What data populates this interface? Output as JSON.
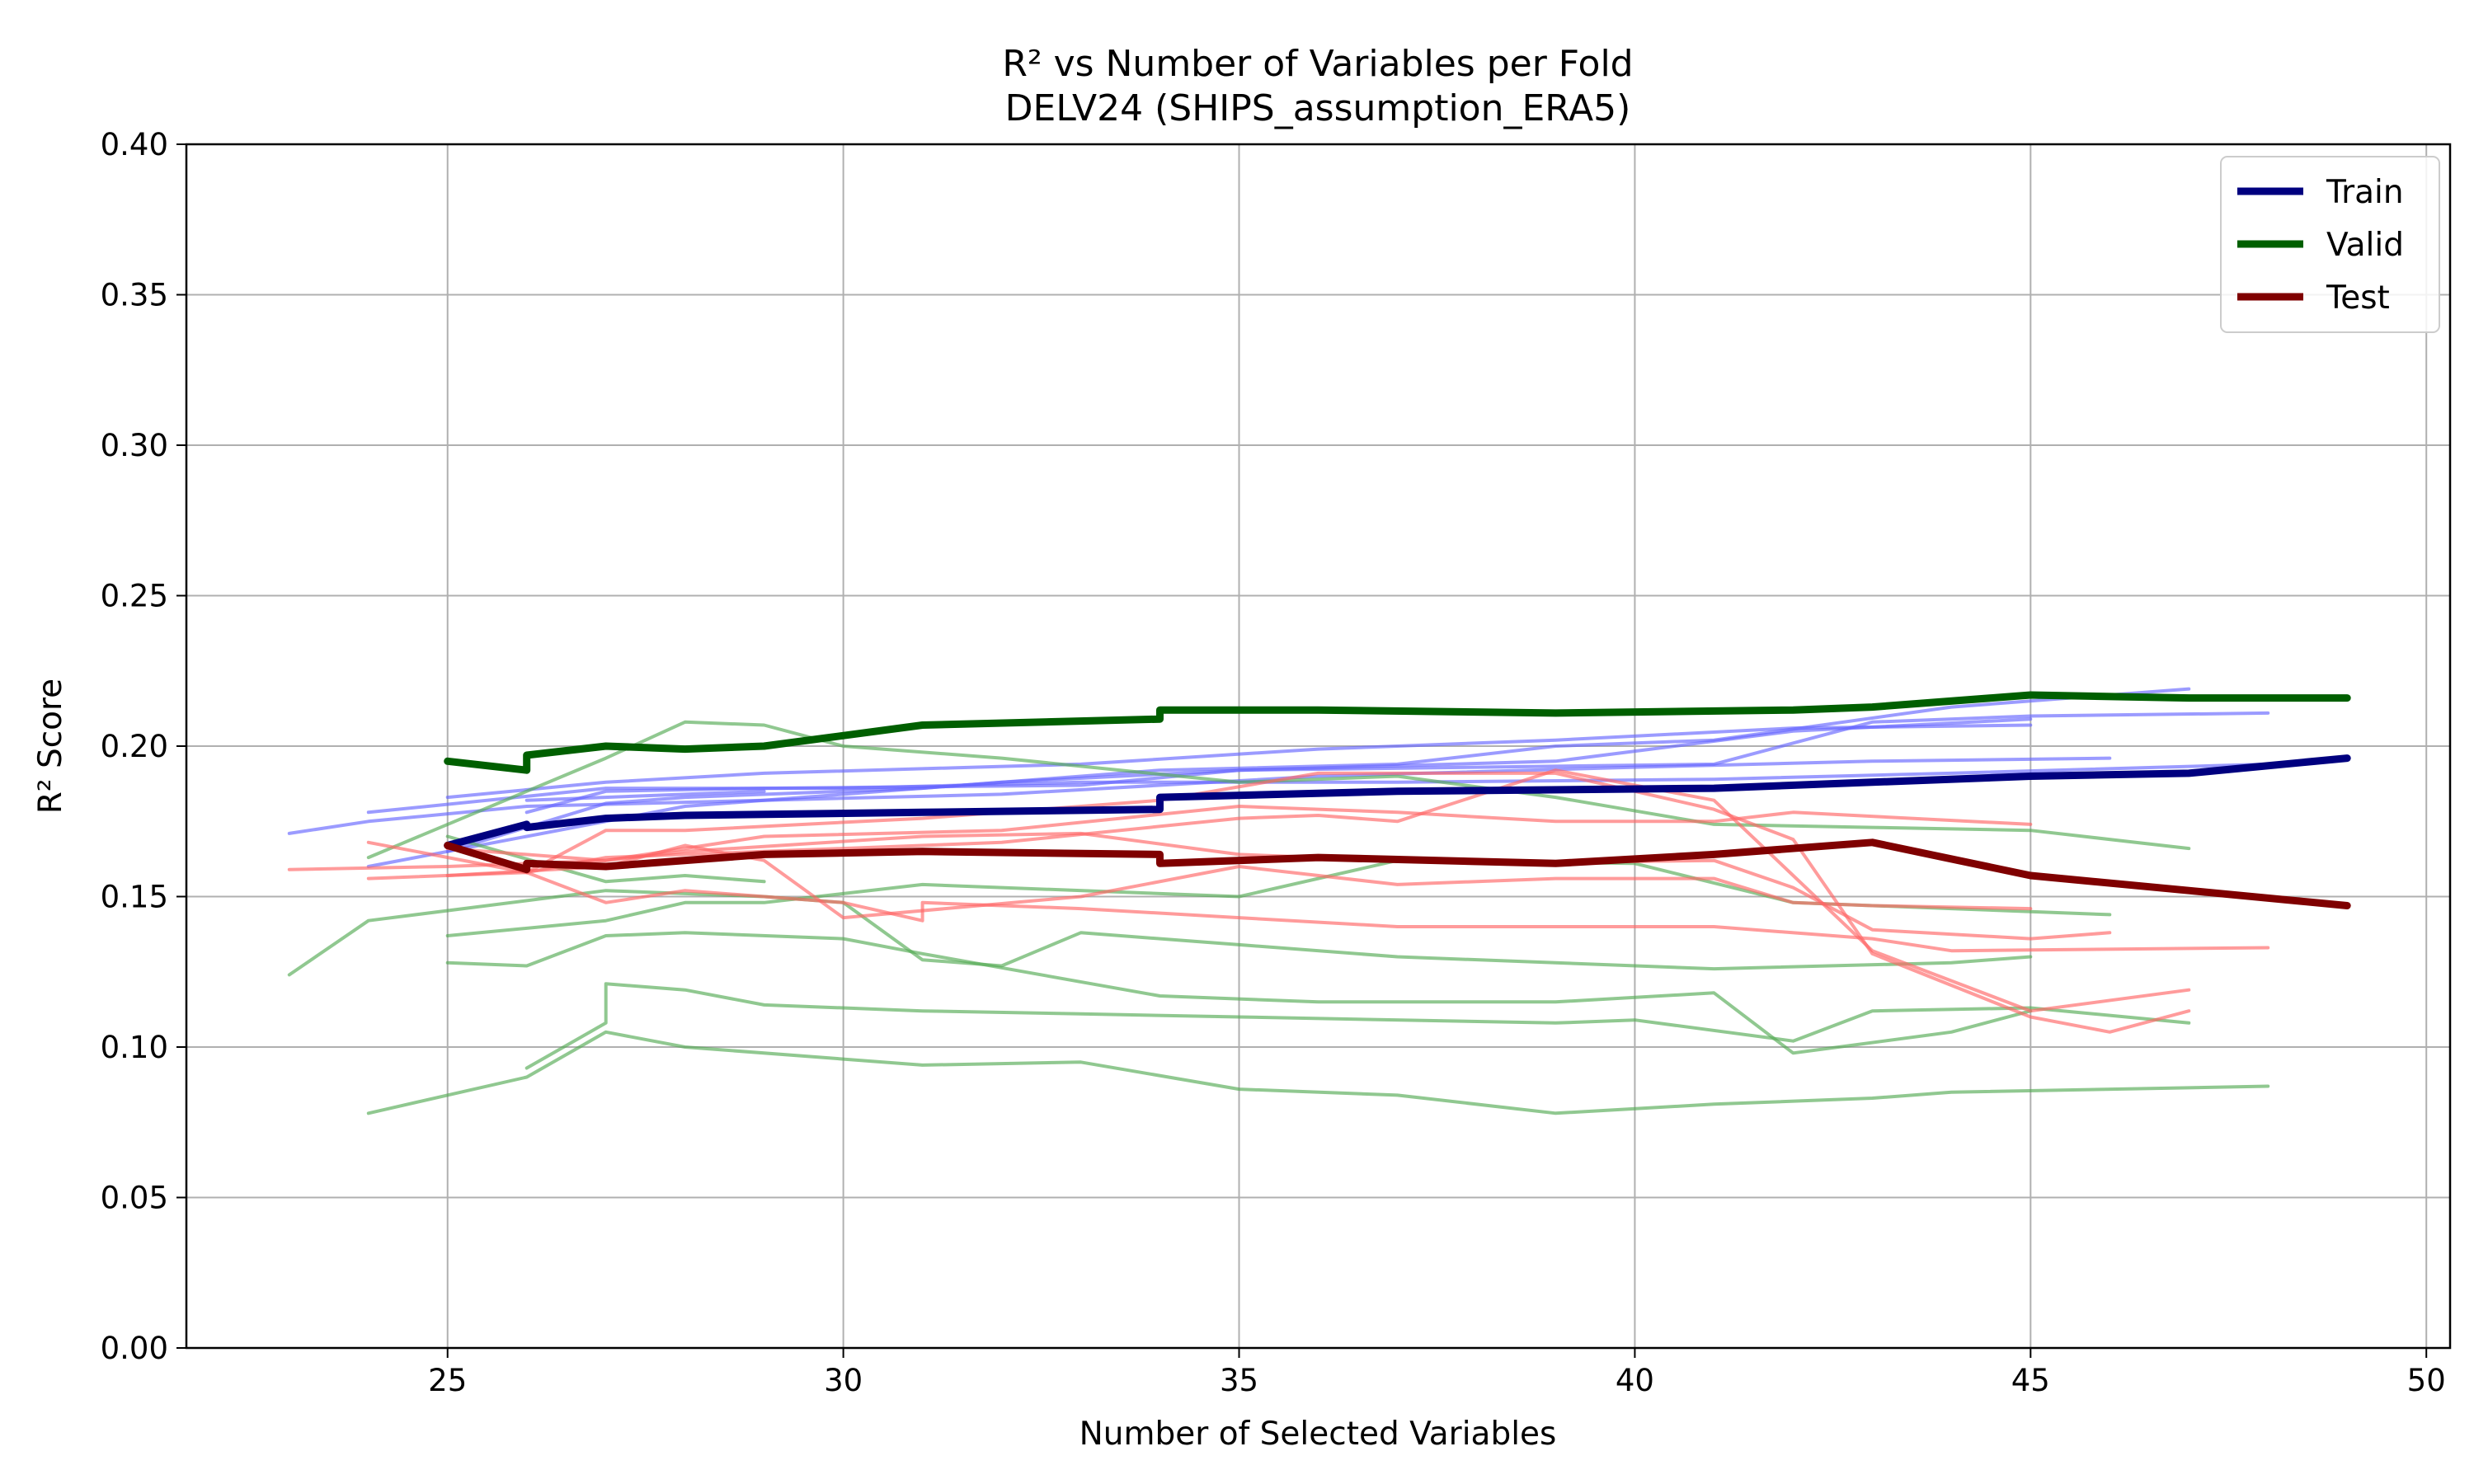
{
  "chart_data": {
    "type": "line",
    "title": "R² vs Number of Variables per Fold",
    "subtitle": "DELV24 (SHIPS_assumption_ERA5)",
    "xlabel": "Number of Selected Variables",
    "ylabel": "R² Score",
    "xlim": [
      21.7,
      50.3
    ],
    "ylim": [
      0.0,
      0.4
    ],
    "xticks": [
      "25",
      "30",
      "35",
      "40",
      "45",
      "50"
    ],
    "yticks": [
      "0.00",
      "0.05",
      "0.10",
      "0.15",
      "0.20",
      "0.25",
      "0.30",
      "0.35",
      "0.40"
    ],
    "grid": true,
    "legend": {
      "position": "top-right",
      "entries": [
        {
          "label": "Train",
          "color": "#00007f"
        },
        {
          "label": "Valid",
          "color": "#005f00"
        },
        {
          "label": "Test",
          "color": "#7f0000"
        }
      ]
    },
    "colors": {
      "train_mean": "#00007f",
      "valid_mean": "#005f00",
      "test_mean": "#7f0000",
      "train_fold": "#6666ff",
      "valid_fold": "#55aa55",
      "test_fold": "#ff6666"
    },
    "mean_series": [
      {
        "name": "Train",
        "color": "#00007f",
        "points": [
          [
            25,
            0.167
          ],
          [
            26,
            0.174
          ],
          [
            26,
            0.173
          ],
          [
            27,
            0.176
          ],
          [
            28,
            0.177
          ],
          [
            31,
            0.178
          ],
          [
            34,
            0.179
          ],
          [
            34,
            0.183
          ],
          [
            37,
            0.185
          ],
          [
            41,
            0.186
          ],
          [
            43,
            0.188
          ],
          [
            45,
            0.19
          ],
          [
            47,
            0.191
          ],
          [
            49,
            0.196
          ]
        ]
      },
      {
        "name": "Valid",
        "color": "#005f00",
        "points": [
          [
            25,
            0.195
          ],
          [
            26,
            0.192
          ],
          [
            26,
            0.197
          ],
          [
            27,
            0.2
          ],
          [
            28,
            0.199
          ],
          [
            29,
            0.2
          ],
          [
            31,
            0.207
          ],
          [
            34,
            0.209
          ],
          [
            34,
            0.212
          ],
          [
            36,
            0.212
          ],
          [
            39,
            0.211
          ],
          [
            42,
            0.212
          ],
          [
            43,
            0.213
          ],
          [
            45,
            0.217
          ],
          [
            47,
            0.216
          ],
          [
            49,
            0.216
          ]
        ]
      },
      {
        "name": "Test",
        "color": "#7f0000",
        "points": [
          [
            25,
            0.167
          ],
          [
            26,
            0.159
          ],
          [
            26,
            0.161
          ],
          [
            27,
            0.16
          ],
          [
            29,
            0.164
          ],
          [
            31,
            0.165
          ],
          [
            34,
            0.164
          ],
          [
            34,
            0.161
          ],
          [
            36,
            0.163
          ],
          [
            39,
            0.161
          ],
          [
            41,
            0.164
          ],
          [
            43,
            0.168
          ],
          [
            45,
            0.157
          ],
          [
            47,
            0.152
          ],
          [
            49,
            0.147
          ]
        ]
      }
    ],
    "fold_series": [
      {
        "group": "train",
        "points": [
          [
            23,
            0.171
          ],
          [
            24,
            0.175
          ],
          [
            26,
            0.18
          ],
          [
            29,
            0.182
          ],
          [
            32,
            0.184
          ],
          [
            36,
            0.19
          ],
          [
            40,
            0.193
          ],
          [
            43,
            0.195
          ],
          [
            46,
            0.196
          ]
        ]
      },
      {
        "group": "train",
        "points": [
          [
            24,
            0.178
          ],
          [
            27,
            0.186
          ],
          [
            30,
            0.186
          ],
          [
            33,
            0.188
          ],
          [
            37,
            0.188
          ],
          [
            41,
            0.189
          ],
          [
            44,
            0.191
          ],
          [
            48,
            0.194
          ]
        ]
      },
      {
        "group": "train",
        "points": [
          [
            24,
            0.16
          ],
          [
            26,
            0.17
          ],
          [
            28,
            0.18
          ],
          [
            30,
            0.184
          ],
          [
            32,
            0.188
          ],
          [
            35,
            0.192
          ],
          [
            39,
            0.195
          ],
          [
            42,
            0.205
          ],
          [
            45,
            0.209
          ]
        ]
      },
      {
        "group": "train",
        "points": [
          [
            25,
            0.183
          ],
          [
            27,
            0.188
          ],
          [
            29,
            0.191
          ],
          [
            33,
            0.194
          ],
          [
            36,
            0.199
          ],
          [
            39,
            0.202
          ],
          [
            42,
            0.206
          ],
          [
            45,
            0.207
          ]
        ]
      },
      {
        "group": "train",
        "points": [
          [
            25,
            0.165
          ],
          [
            27,
            0.181
          ],
          [
            28,
            0.183
          ],
          [
            31,
            0.186
          ],
          [
            34,
            0.192
          ],
          [
            37,
            0.194
          ],
          [
            39,
            0.2
          ],
          [
            41,
            0.202
          ],
          [
            44,
            0.213
          ],
          [
            47,
            0.219
          ]
        ]
      },
      {
        "group": "train",
        "points": [
          [
            26,
            0.178
          ],
          [
            27,
            0.185
          ],
          [
            29,
            0.186
          ],
          [
            33,
            0.187
          ],
          [
            35,
            0.192
          ],
          [
            38,
            0.193
          ],
          [
            41,
            0.194
          ],
          [
            43,
            0.208
          ],
          [
            45,
            0.21
          ],
          [
            48,
            0.211
          ]
        ]
      },
      {
        "group": "train",
        "points": [
          [
            26,
            0.182
          ],
          [
            28,
            0.184
          ],
          [
            29,
            0.185
          ]
        ]
      },
      {
        "group": "valid",
        "points": [
          [
            23,
            0.124
          ],
          [
            24,
            0.142
          ],
          [
            27,
            0.152
          ],
          [
            29,
            0.15
          ],
          [
            30,
            0.148
          ],
          [
            31,
            0.129
          ],
          [
            32,
            0.127
          ],
          [
            33,
            0.138
          ],
          [
            35,
            0.134
          ],
          [
            37,
            0.13
          ],
          [
            41,
            0.126
          ],
          [
            44,
            0.128
          ],
          [
            45,
            0.13
          ]
        ]
      },
      {
        "group": "valid",
        "points": [
          [
            24,
            0.163
          ],
          [
            27,
            0.196
          ],
          [
            28,
            0.208
          ],
          [
            29,
            0.207
          ],
          [
            30,
            0.2
          ],
          [
            32,
            0.196
          ],
          [
            35,
            0.188
          ],
          [
            37,
            0.19
          ],
          [
            39,
            0.183
          ],
          [
            41,
            0.174
          ],
          [
            43,
            0.173
          ],
          [
            45,
            0.172
          ],
          [
            47,
            0.166
          ]
        ]
      },
      {
        "group": "valid",
        "points": [
          [
            24,
            0.078
          ],
          [
            26,
            0.09
          ],
          [
            27,
            0.105
          ],
          [
            28,
            0.1
          ],
          [
            31,
            0.094
          ],
          [
            33,
            0.095
          ],
          [
            35,
            0.086
          ],
          [
            37,
            0.084
          ],
          [
            39,
            0.078
          ],
          [
            41,
            0.081
          ],
          [
            43,
            0.083
          ],
          [
            44,
            0.085
          ],
          [
            48,
            0.087
          ]
        ]
      },
      {
        "group": "valid",
        "points": [
          [
            25,
            0.128
          ],
          [
            26,
            0.127
          ],
          [
            27,
            0.137
          ],
          [
            28,
            0.138
          ],
          [
            30,
            0.136
          ],
          [
            31,
            0.131
          ],
          [
            34,
            0.117
          ],
          [
            36,
            0.115
          ],
          [
            39,
            0.115
          ],
          [
            41,
            0.118
          ],
          [
            42,
            0.098
          ],
          [
            44,
            0.105
          ],
          [
            45,
            0.112
          ]
        ]
      },
      {
        "group": "valid",
        "points": [
          [
            26,
            0.093
          ],
          [
            27,
            0.108
          ],
          [
            27,
            0.121
          ],
          [
            28,
            0.119
          ],
          [
            29,
            0.114
          ],
          [
            31,
            0.112
          ],
          [
            33,
            0.111
          ],
          [
            35,
            0.11
          ],
          [
            39,
            0.108
          ],
          [
            40,
            0.109
          ],
          [
            42,
            0.102
          ],
          [
            43,
            0.112
          ],
          [
            45,
            0.113
          ],
          [
            47,
            0.108
          ]
        ]
      },
      {
        "group": "valid",
        "points": [
          [
            25,
            0.137
          ],
          [
            27,
            0.142
          ],
          [
            28,
            0.148
          ],
          [
            29,
            0.148
          ],
          [
            31,
            0.154
          ],
          [
            35,
            0.15
          ],
          [
            37,
            0.162
          ],
          [
            40,
            0.161
          ],
          [
            42,
            0.148
          ],
          [
            44,
            0.146
          ],
          [
            46,
            0.144
          ]
        ]
      },
      {
        "group": "valid",
        "points": [
          [
            25,
            0.17
          ],
          [
            27,
            0.155
          ],
          [
            28,
            0.157
          ],
          [
            29,
            0.155
          ]
        ]
      },
      {
        "group": "test",
        "points": [
          [
            23,
            0.159
          ],
          [
            25,
            0.16
          ],
          [
            27,
            0.162
          ],
          [
            29,
            0.17
          ],
          [
            32,
            0.172
          ],
          [
            35,
            0.18
          ],
          [
            37,
            0.178
          ],
          [
            39,
            0.175
          ],
          [
            41,
            0.175
          ],
          [
            42,
            0.178
          ],
          [
            45,
            0.174
          ]
        ]
      },
      {
        "group": "test",
        "points": [
          [
            24,
            0.168
          ],
          [
            26,
            0.158
          ],
          [
            27,
            0.148
          ],
          [
            28,
            0.152
          ],
          [
            30,
            0.148
          ],
          [
            31,
            0.142
          ],
          [
            31,
            0.148
          ],
          [
            33,
            0.146
          ],
          [
            35,
            0.143
          ],
          [
            37,
            0.14
          ],
          [
            41,
            0.14
          ],
          [
            43,
            0.136
          ],
          [
            44,
            0.132
          ],
          [
            48,
            0.133
          ]
        ]
      },
      {
        "group": "test",
        "points": [
          [
            24,
            0.156
          ],
          [
            26,
            0.158
          ],
          [
            27,
            0.163
          ],
          [
            28,
            0.164
          ],
          [
            30,
            0.166
          ],
          [
            32,
            0.168
          ],
          [
            35,
            0.176
          ],
          [
            36,
            0.177
          ],
          [
            37,
            0.175
          ],
          [
            39,
            0.192
          ],
          [
            41,
            0.182
          ],
          [
            43,
            0.132
          ],
          [
            45,
            0.112
          ],
          [
            47,
            0.119
          ]
        ]
      },
      {
        "group": "test",
        "points": [
          [
            25,
            0.157
          ],
          [
            27,
            0.16
          ],
          [
            28,
            0.167
          ],
          [
            29,
            0.162
          ],
          [
            30,
            0.143
          ],
          [
            33,
            0.15
          ],
          [
            35,
            0.16
          ],
          [
            37,
            0.154
          ],
          [
            39,
            0.156
          ],
          [
            41,
            0.156
          ],
          [
            42,
            0.148
          ],
          [
            43,
            0.147
          ],
          [
            45,
            0.146
          ]
        ]
      },
      {
        "group": "test",
        "points": [
          [
            26,
            0.158
          ],
          [
            27,
            0.172
          ],
          [
            28,
            0.172
          ],
          [
            31,
            0.176
          ],
          [
            34,
            0.182
          ],
          [
            36,
            0.191
          ],
          [
            39,
            0.191
          ],
          [
            41,
            0.179
          ],
          [
            42,
            0.169
          ],
          [
            43,
            0.131
          ],
          [
            45,
            0.11
          ],
          [
            46,
            0.105
          ],
          [
            47,
            0.112
          ]
        ]
      },
      {
        "group": "test",
        "points": [
          [
            25,
            0.166
          ],
          [
            27,
            0.162
          ],
          [
            28,
            0.165
          ],
          [
            31,
            0.17
          ],
          [
            33,
            0.171
          ],
          [
            35,
            0.164
          ],
          [
            38,
            0.161
          ],
          [
            41,
            0.162
          ],
          [
            42,
            0.153
          ],
          [
            43,
            0.139
          ],
          [
            45,
            0.136
          ],
          [
            46,
            0.138
          ]
        ]
      }
    ]
  }
}
